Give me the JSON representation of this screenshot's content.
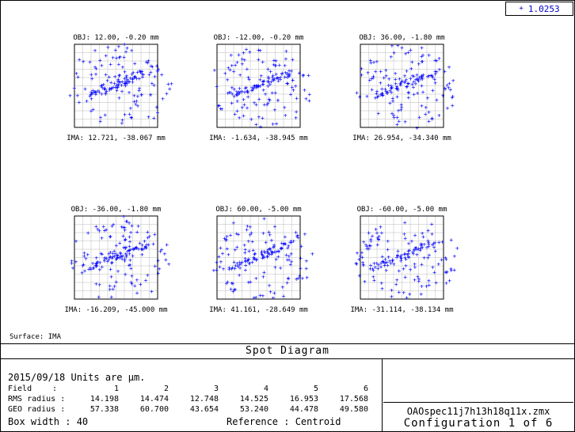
{
  "legend": {
    "marker": "+",
    "value": "1.0253"
  },
  "surface_label": "Surface: IMA",
  "title": "Spot Diagram",
  "date_units": "2015/09/18  Units are µm.",
  "table": {
    "field_label": "Field",
    "rms_label": "RMS radius :",
    "geo_label": "GEO radius :",
    "fields": [
      "1",
      "2",
      "3",
      "4",
      "5",
      "6"
    ],
    "rms": [
      "14.198",
      "14.474",
      "12.748",
      "14.525",
      "16.953",
      "17.568"
    ],
    "geo": [
      "57.338",
      "60.700",
      "43.654",
      "53.240",
      "44.478",
      "49.580"
    ]
  },
  "box_width": "Box width  : 40",
  "reference": "Reference  : Centroid",
  "file_name": "OAOspec11j7h13h18q11x.zmx",
  "configuration": "Configuration 1 of 6",
  "spot_color": "#0000ff",
  "spots": [
    {
      "obj": "OBJ: 12.00, -0.20 mm",
      "ima": "IMA: 12.721, -38.067 mm"
    },
    {
      "obj": "OBJ: -12.00, -0.20 mm",
      "ima": "IMA: -1.634, -38.945 mm"
    },
    {
      "obj": "OBJ: 36.00, -1.80 mm",
      "ima": "IMA: 26.954, -34.340 mm"
    },
    {
      "obj": "OBJ: -36.00, -1.80 mm",
      "ima": "IMA: -16.209, -45.000 mm"
    },
    {
      "obj": "OBJ: 60.00, -5.00 mm",
      "ima": "IMA: 41.161, -28.649 mm"
    },
    {
      "obj": "OBJ: -60.00, -5.00 mm",
      "ima": "IMA: -31.114, -38.134 mm"
    }
  ]
}
